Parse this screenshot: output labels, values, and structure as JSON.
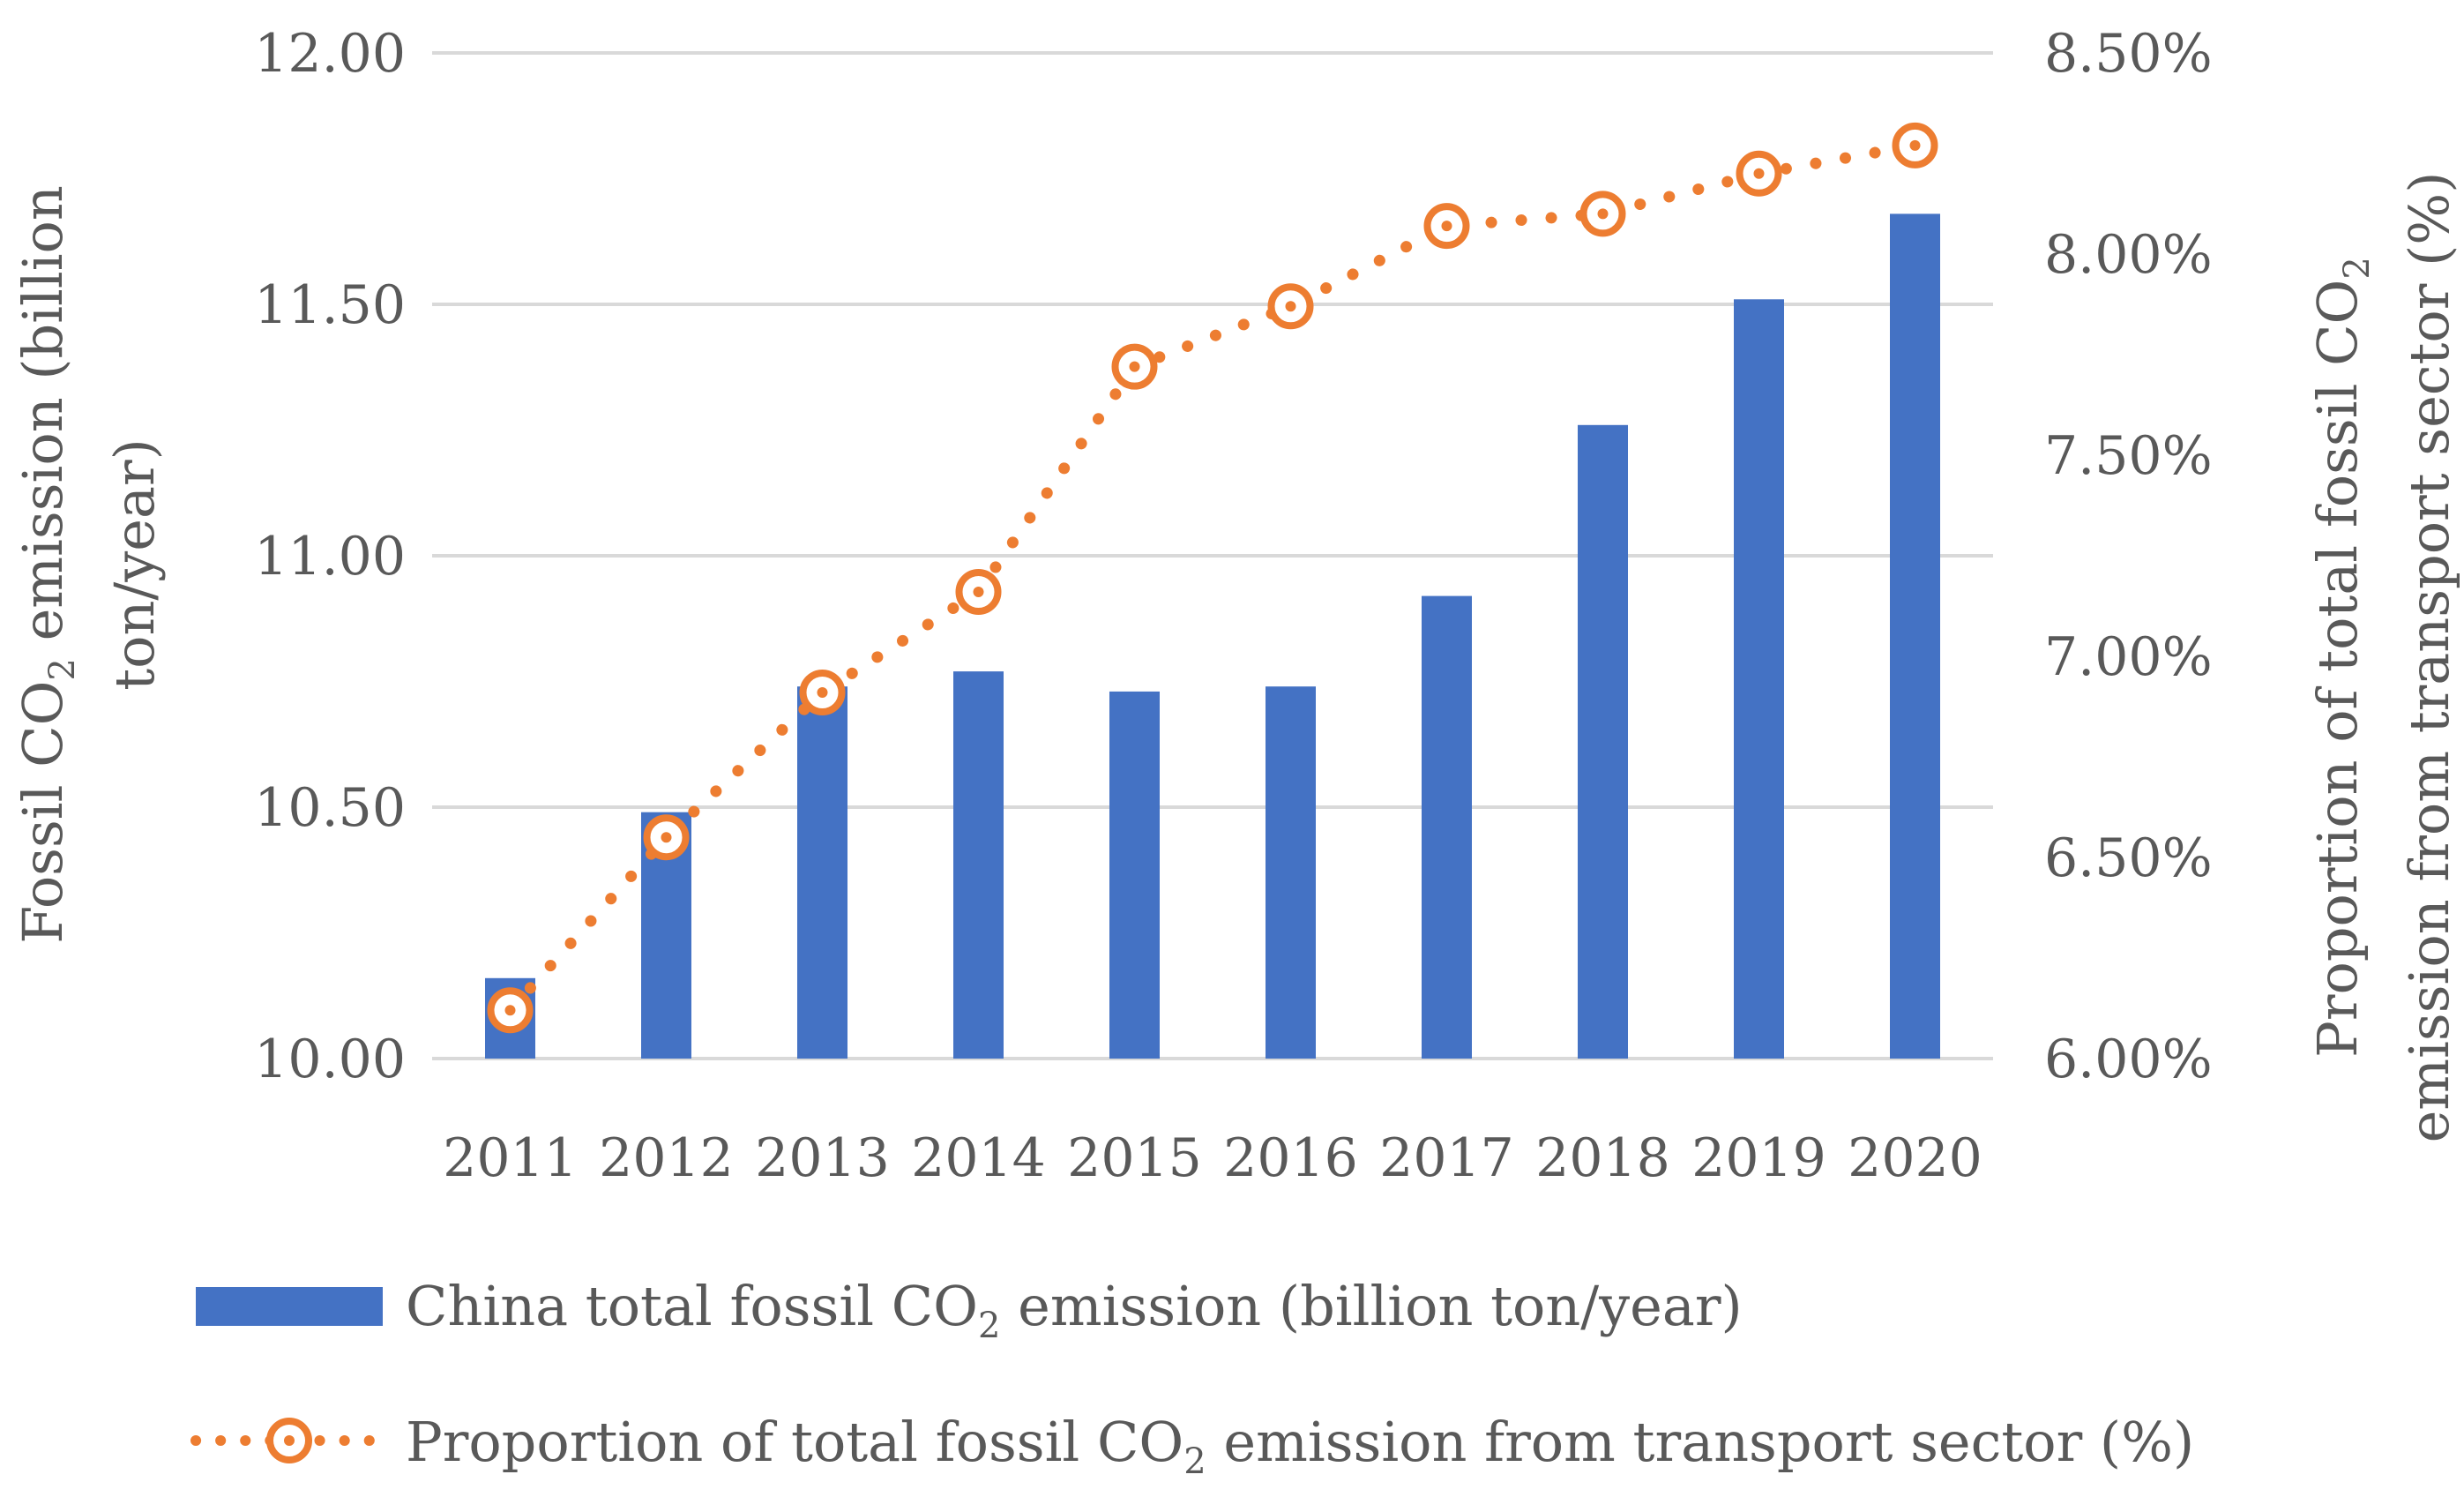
{
  "chart_data": {
    "type": "bar+line",
    "categories": [
      "2011",
      "2012",
      "2013",
      "2014",
      "2015",
      "2016",
      "2017",
      "2018",
      "2019",
      "2020"
    ],
    "series": [
      {
        "name": "China total fossil CO2 emission (billion ton/year)",
        "type": "bar",
        "axis": "left",
        "color": "#4472C4",
        "values": [
          10.16,
          10.49,
          10.74,
          10.77,
          10.73,
          10.74,
          10.92,
          11.26,
          11.51,
          11.68
        ]
      },
      {
        "name": "Proportion of total fossil CO2 emission from transport sector (%)",
        "type": "line",
        "line_style": "dotted",
        "marker": "circle",
        "axis": "right",
        "color": "#ED7D31",
        "values": [
          6.12,
          6.55,
          6.91,
          7.16,
          7.72,
          7.87,
          8.07,
          8.1,
          8.2,
          8.27
        ]
      }
    ],
    "y_left": {
      "ticks": [
        "10.00",
        "10.50",
        "11.00",
        "11.50",
        "12.00"
      ],
      "min": 10.0,
      "max": 12.0
    },
    "y_right": {
      "ticks": [
        "6.00%",
        "6.50%",
        "7.00%",
        "7.50%",
        "8.00%",
        "8.50%"
      ],
      "min": 6.0,
      "max": 8.5
    },
    "ylabel_left": {
      "line1_pre": "Fossil CO",
      "line1_sub": "2",
      "line1_post": " emission (billion",
      "line2": "ton/year)"
    },
    "ylabel_right": {
      "line1_pre": "Proportion of total fossil CO",
      "line1_sub": "2",
      "line2": "emission from transport sector (%)"
    },
    "legend": [
      {
        "pre": "China total fossil CO",
        "sub": "2",
        "post": " emission (billion ton/year)"
      },
      {
        "pre": "Proportion of total fossil CO",
        "sub": "2",
        "post": " emission from transport sector (%)"
      }
    ],
    "grid": true,
    "legend_position": "bottom"
  }
}
